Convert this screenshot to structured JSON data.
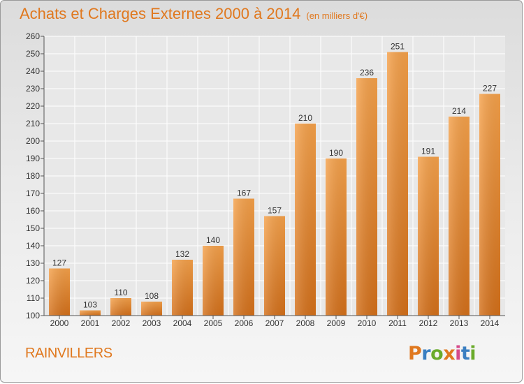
{
  "chart_data": {
    "type": "bar",
    "title": "Achats et Charges Externes 2000 à 2014",
    "subtitle": "(en milliers d'€)",
    "categories": [
      "2000",
      "2001",
      "2002",
      "2003",
      "2004",
      "2005",
      "2006",
      "2007",
      "2008",
      "2009",
      "2010",
      "2011",
      "2012",
      "2013",
      "2014"
    ],
    "values": [
      127,
      103,
      110,
      108,
      132,
      140,
      167,
      157,
      210,
      190,
      236,
      251,
      191,
      214,
      227
    ],
    "xlabel": "",
    "ylabel": "",
    "ylim": [
      100,
      260
    ],
    "yticks": [
      100,
      110,
      120,
      130,
      140,
      150,
      160,
      170,
      180,
      190,
      200,
      210,
      220,
      230,
      240,
      250,
      260
    ],
    "grid": true,
    "legend": "none",
    "bar_color": "#f0922e"
  },
  "footer": {
    "city": "RAINVILLERS",
    "logo_text": "Proxiti",
    "logo_colors": [
      "#e0781e",
      "#3a7fc1",
      "#6aab2b",
      "#e0781e",
      "#d64a8a",
      "#3a7fc1",
      "#6aab2b"
    ]
  }
}
